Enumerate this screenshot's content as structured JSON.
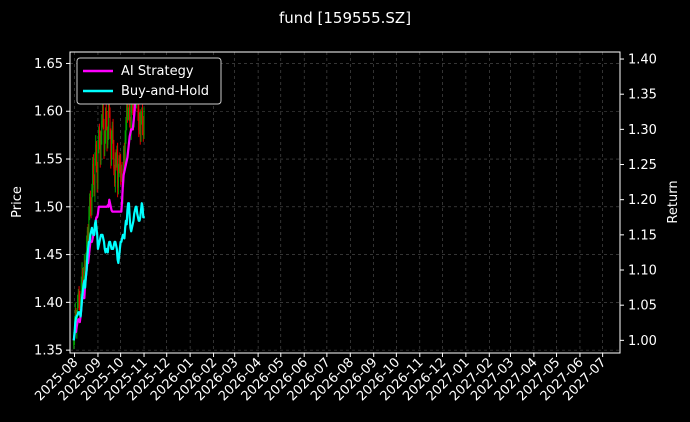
{
  "chart_data": {
    "type": "line",
    "title": "fund [159555.SZ]",
    "xlabel": "",
    "ylabel": "Price",
    "ylabel_right": "Return",
    "x_tick_labels": [
      "2025-08",
      "2025-09",
      "2025-10",
      "2025-11",
      "2025-12",
      "2026-01",
      "2026-02",
      "2026-03",
      "2026-04",
      "2026-05",
      "2026-06",
      "2026-07",
      "2026-08",
      "2026-09",
      "2026-10",
      "2026-11",
      "2026-12",
      "2027-01",
      "2027-02",
      "2027-03",
      "2027-04",
      "2027-05",
      "2027-06",
      "2027-07"
    ],
    "xlim": [
      "2025-07-26",
      "2027-07-24"
    ],
    "ylim": [
      1.347,
      1.662
    ],
    "ylim_right": [
      0.982,
      1.41
    ],
    "y_ticks": [
      1.35,
      1.4,
      1.45,
      1.5,
      1.55,
      1.6,
      1.65
    ],
    "y_ticks_right": [
      1.0,
      1.05,
      1.1,
      1.15,
      1.2,
      1.25,
      1.3,
      1.35,
      1.4
    ],
    "grid": true,
    "legend_position": "top-left",
    "colors": {
      "background": "#000000",
      "ai_strategy": "#ff00ff",
      "buy_and_hold": "#00ffff",
      "candle_up": "#00a000",
      "candle_down": "#e00000",
      "grid": "#555555"
    },
    "candles": {
      "axis": "left",
      "start_date": "2025-07-31",
      "close": [
        1.365,
        1.378,
        1.39,
        1.372,
        1.385,
        1.398,
        1.41,
        1.402,
        1.39,
        1.405,
        1.42,
        1.432,
        1.418,
        1.43,
        1.44,
        1.428,
        1.445,
        1.46,
        1.475,
        1.468,
        1.49,
        1.51,
        1.5,
        1.495,
        1.52,
        1.545,
        1.53,
        1.515,
        1.55,
        1.565,
        1.54,
        1.525,
        1.56,
        1.58,
        1.57,
        1.548,
        1.575,
        1.59,
        1.605,
        1.585,
        1.56,
        1.57,
        1.6,
        1.59,
        1.565,
        1.58,
        1.61,
        1.6,
        1.575,
        1.55,
        1.57,
        1.585,
        1.56,
        1.54,
        1.525,
        1.55,
        1.545,
        1.56,
        1.52,
        1.535,
        1.55,
        1.545,
        1.53,
        1.54,
        1.51,
        1.525,
        1.56,
        1.545,
        1.57,
        1.59,
        1.605,
        1.595,
        1.6,
        1.61,
        1.59,
        1.58,
        1.605,
        1.615,
        1.6,
        1.59,
        1.605,
        1.62,
        1.61,
        1.63,
        1.615,
        1.6,
        1.58,
        1.595,
        1.575,
        1.59,
        1.6,
        1.585,
        1.575,
        1.6
      ]
    },
    "series": [
      {
        "name": "AI Strategy",
        "axis": "right",
        "start_date": "2025-07-31",
        "values": [
          1.0,
          1.008,
          1.018,
          1.012,
          1.02,
          1.026,
          1.03,
          1.028,
          1.026,
          1.034,
          1.045,
          1.06,
          1.06,
          1.06,
          1.06,
          1.08,
          1.09,
          1.1,
          1.11,
          1.11,
          1.12,
          1.13,
          1.14,
          1.14,
          1.14,
          1.145,
          1.15,
          1.15,
          1.16,
          1.17,
          1.175,
          1.175,
          1.18,
          1.19,
          1.19,
          1.19,
          1.19,
          1.19,
          1.19,
          1.19,
          1.19,
          1.19,
          1.19,
          1.19,
          1.19,
          1.192,
          1.19,
          1.2,
          1.195,
          1.19,
          1.185,
          1.183,
          1.183,
          1.183,
          1.183,
          1.183,
          1.183,
          1.183,
          1.183,
          1.183,
          1.183,
          1.183,
          1.183,
          1.183,
          1.2,
          1.22,
          1.235,
          1.24,
          1.245,
          1.25,
          1.255,
          1.26,
          1.27,
          1.28,
          1.29,
          1.295,
          1.3,
          1.3,
          1.3,
          1.31,
          1.32,
          1.335,
          1.345,
          1.36,
          1.37
        ]
      },
      {
        "name": "Buy-and-Hold",
        "axis": "right",
        "start_date": "2025-07-31",
        "values": [
          1.0,
          1.01,
          1.025,
          1.032,
          1.035,
          1.036,
          1.04,
          1.038,
          1.04,
          1.034,
          1.045,
          1.06,
          1.07,
          1.08,
          1.085,
          1.075,
          1.09,
          1.1,
          1.12,
          1.13,
          1.14,
          1.14,
          1.15,
          1.155,
          1.16,
          1.155,
          1.15,
          1.15,
          1.165,
          1.17,
          1.16,
          1.15,
          1.13,
          1.135,
          1.14,
          1.145,
          1.15,
          1.15,
          1.15,
          1.145,
          1.14,
          1.13,
          1.125,
          1.13,
          1.13,
          1.125,
          1.135,
          1.14,
          1.14,
          1.135,
          1.13,
          1.13,
          1.13,
          1.135,
          1.14,
          1.14,
          1.135,
          1.13,
          1.115,
          1.11,
          1.12,
          1.13,
          1.14,
          1.14,
          1.145,
          1.15,
          1.15,
          1.145,
          1.16,
          1.17,
          1.165,
          1.185,
          1.195,
          1.195,
          1.175,
          1.16,
          1.155,
          1.16,
          1.165,
          1.17,
          1.18,
          1.185,
          1.19,
          1.19,
          1.18,
          1.175,
          1.17,
          1.17,
          1.175,
          1.185,
          1.195,
          1.19,
          1.175,
          1.175,
          1.175
        ]
      }
    ]
  }
}
